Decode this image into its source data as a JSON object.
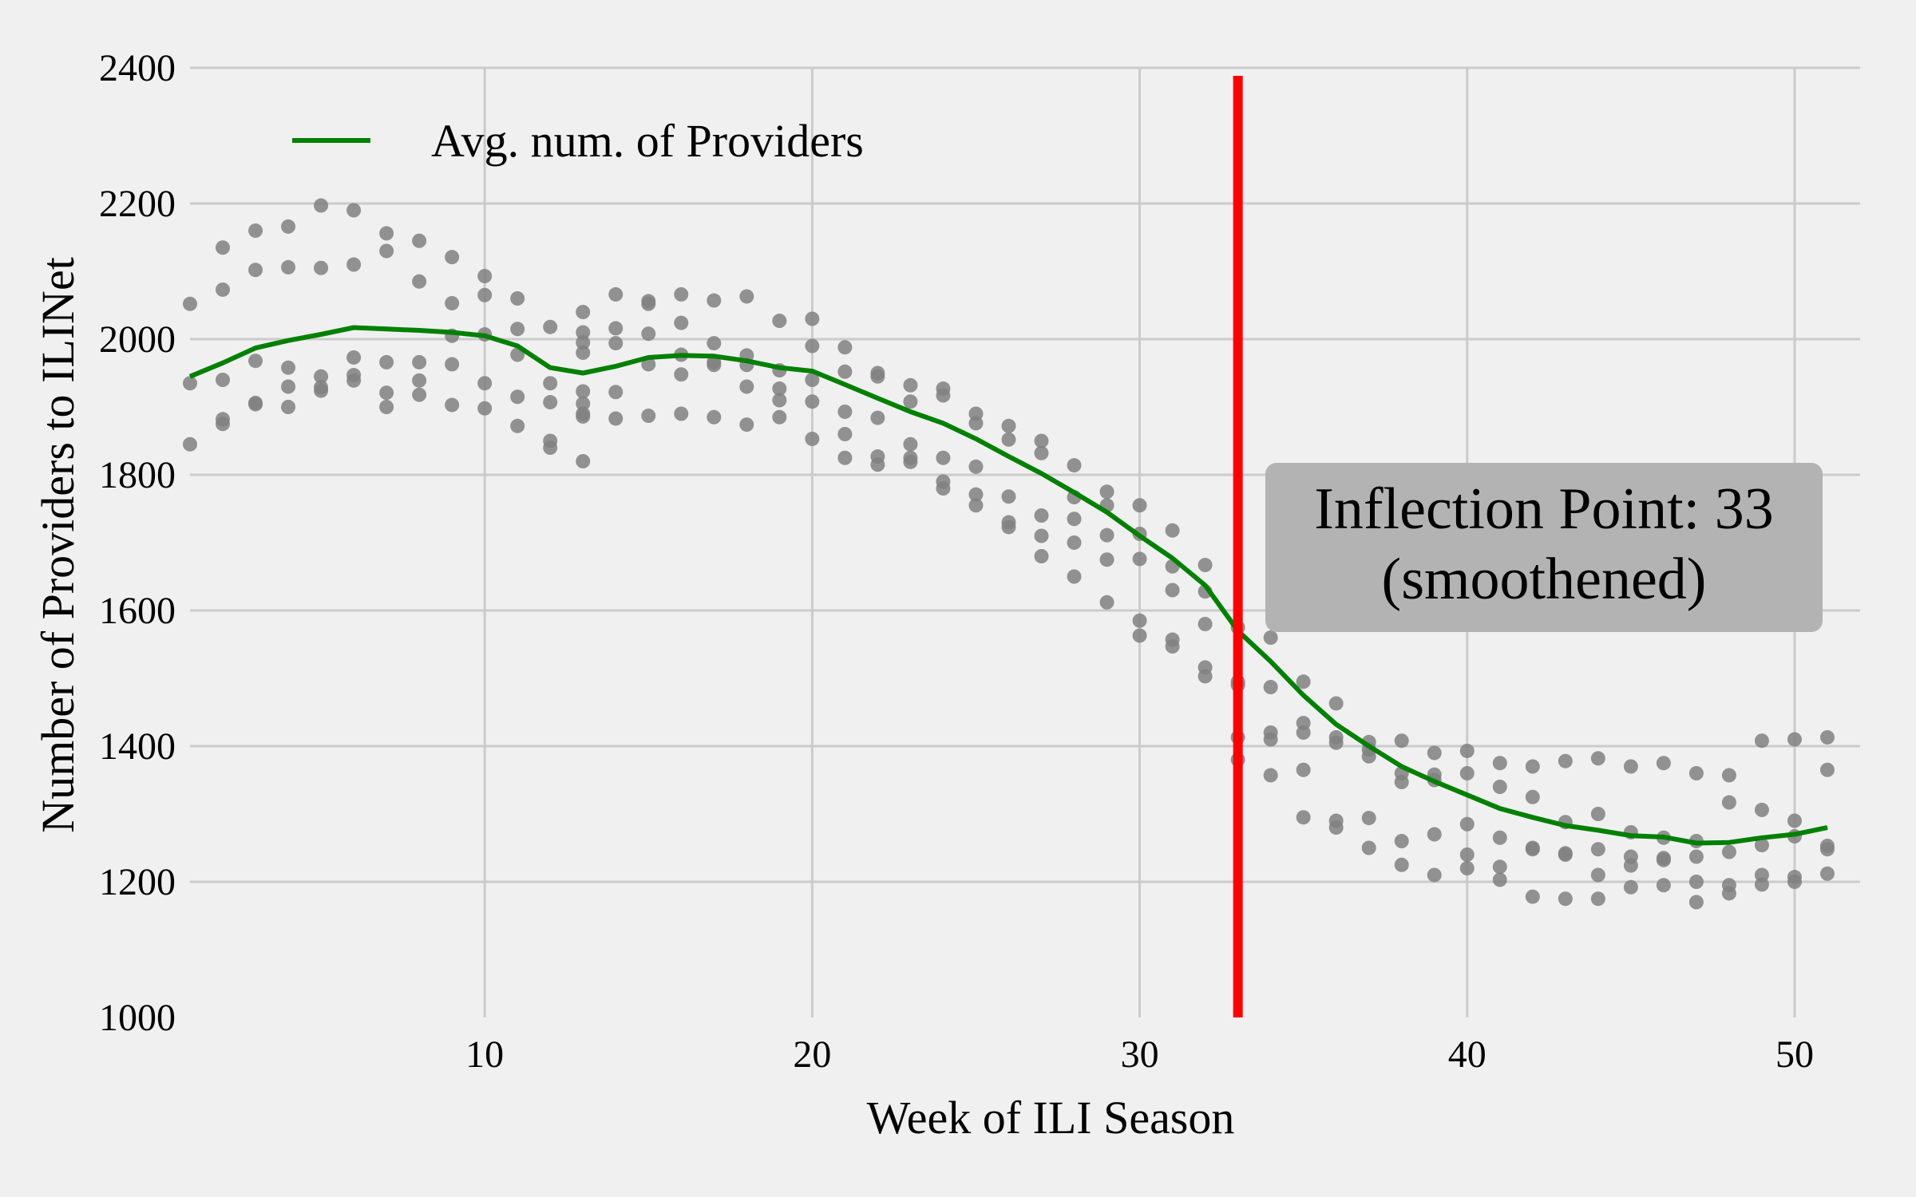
{
  "chart_data": {
    "type": "scatter",
    "xlabel": "Week of ILI Season",
    "ylabel": "Number of Providers to ILINet",
    "xlim": [
      1,
      52
    ],
    "ylim": [
      1000,
      2400
    ],
    "xticks": [
      10,
      20,
      30,
      40,
      50
    ],
    "yticks": [
      1000,
      1200,
      1400,
      1600,
      1800,
      2000,
      2200,
      2400
    ],
    "grid": true,
    "legend": {
      "placement": "top-left",
      "entries": [
        "Avg. num. of Providers"
      ]
    },
    "colors": {
      "background": "#f0f0f0",
      "grid": "#cbcbcb",
      "points": "#808080",
      "line": "#008000",
      "inflection": "#ff0000",
      "annotation_box": "#b3b3b3"
    },
    "annotation": {
      "lines": [
        "Inflection Point: 33",
        "(smoothened)"
      ]
    },
    "inflection_x": 33,
    "series": [
      {
        "name": "Avg. num. of Providers",
        "type": "line",
        "x": [
          1,
          2,
          3,
          4,
          5,
          6,
          7,
          8,
          9,
          10,
          11,
          12,
          13,
          14,
          15,
          16,
          17,
          18,
          19,
          20,
          21,
          22,
          23,
          24,
          25,
          26,
          27,
          28,
          29,
          30,
          31,
          32,
          33,
          34,
          35,
          36,
          37,
          38,
          39,
          40,
          41,
          42,
          43,
          44,
          45,
          46,
          47,
          48,
          49,
          50,
          51
        ],
        "y": [
          1945,
          1965,
          1987,
          1998,
          2007,
          2017,
          2015,
          2013,
          2010,
          2005,
          1990,
          1958,
          1950,
          1960,
          1973,
          1976,
          1975,
          1968,
          1958,
          1953,
          1933,
          1913,
          1893,
          1876,
          1853,
          1827,
          1802,
          1774,
          1745,
          1710,
          1677,
          1637,
          1570,
          1525,
          1475,
          1432,
          1400,
          1370,
          1348,
          1328,
          1308,
          1295,
          1283,
          1276,
          1268,
          1266,
          1257,
          1258,
          1265,
          1270,
          1280
        ]
      },
      {
        "type": "scatter",
        "points": [
          [
            1,
            2052
          ],
          [
            1,
            1935
          ],
          [
            1,
            1845
          ],
          [
            2,
            2135
          ],
          [
            2,
            2073
          ],
          [
            2,
            1940
          ],
          [
            2,
            1882
          ],
          [
            2,
            1875
          ],
          [
            3,
            2160
          ],
          [
            3,
            2102
          ],
          [
            3,
            1968
          ],
          [
            3,
            1906
          ],
          [
            3,
            1904
          ],
          [
            4,
            2166
          ],
          [
            4,
            2106
          ],
          [
            4,
            1958
          ],
          [
            4,
            1930
          ],
          [
            4,
            1900
          ],
          [
            5,
            2197
          ],
          [
            5,
            2105
          ],
          [
            5,
            1945
          ],
          [
            5,
            1929
          ],
          [
            5,
            1924
          ],
          [
            6,
            2190
          ],
          [
            6,
            2110
          ],
          [
            6,
            1973
          ],
          [
            6,
            1947
          ],
          [
            6,
            1939
          ],
          [
            7,
            2156
          ],
          [
            7,
            2130
          ],
          [
            7,
            1966
          ],
          [
            7,
            1921
          ],
          [
            7,
            1900
          ],
          [
            8,
            2145
          ],
          [
            8,
            2085
          ],
          [
            8,
            1966
          ],
          [
            8,
            1939
          ],
          [
            8,
            1918
          ],
          [
            9,
            2121
          ],
          [
            9,
            2053
          ],
          [
            9,
            2005
          ],
          [
            9,
            1963
          ],
          [
            9,
            1903
          ],
          [
            10,
            2093
          ],
          [
            10,
            2065
          ],
          [
            10,
            2007
          ],
          [
            10,
            1935
          ],
          [
            10,
            1898
          ],
          [
            11,
            2060
          ],
          [
            11,
            2015
          ],
          [
            11,
            1977
          ],
          [
            11,
            1915
          ],
          [
            11,
            1872
          ],
          [
            12,
            2018
          ],
          [
            12,
            1935
          ],
          [
            12,
            1907
          ],
          [
            12,
            1850
          ],
          [
            12,
            1840
          ],
          [
            13,
            2040
          ],
          [
            13,
            2010
          ],
          [
            13,
            1995
          ],
          [
            13,
            1980
          ],
          [
            13,
            1923
          ],
          [
            13,
            1905
          ],
          [
            13,
            1890
          ],
          [
            13,
            1886
          ],
          [
            13,
            1820
          ],
          [
            14,
            2066
          ],
          [
            14,
            2016
          ],
          [
            14,
            1994
          ],
          [
            14,
            1922
          ],
          [
            14,
            1883
          ],
          [
            15,
            2056
          ],
          [
            15,
            2052
          ],
          [
            15,
            2008
          ],
          [
            15,
            1963
          ],
          [
            15,
            1887
          ],
          [
            16,
            2066
          ],
          [
            16,
            2024
          ],
          [
            16,
            1977
          ],
          [
            16,
            1948
          ],
          [
            16,
            1890
          ],
          [
            17,
            2057
          ],
          [
            17,
            1994
          ],
          [
            17,
            1966
          ],
          [
            17,
            1962
          ],
          [
            17,
            1885
          ],
          [
            18,
            2063
          ],
          [
            18,
            1976
          ],
          [
            18,
            1962
          ],
          [
            18,
            1930
          ],
          [
            18,
            1874
          ],
          [
            19,
            2027
          ],
          [
            19,
            1954
          ],
          [
            19,
            1927
          ],
          [
            19,
            1910
          ],
          [
            19,
            1885
          ],
          [
            20,
            2030
          ],
          [
            20,
            1990
          ],
          [
            20,
            1940
          ],
          [
            20,
            1908
          ],
          [
            20,
            1853
          ],
          [
            21,
            1988
          ],
          [
            21,
            1952
          ],
          [
            21,
            1893
          ],
          [
            21,
            1860
          ],
          [
            21,
            1825
          ],
          [
            22,
            1950
          ],
          [
            22,
            1945
          ],
          [
            22,
            1884
          ],
          [
            22,
            1827
          ],
          [
            22,
            1815
          ],
          [
            23,
            1932
          ],
          [
            23,
            1908
          ],
          [
            23,
            1845
          ],
          [
            23,
            1825
          ],
          [
            23,
            1819
          ],
          [
            24,
            1927
          ],
          [
            24,
            1917
          ],
          [
            24,
            1825
          ],
          [
            24,
            1790
          ],
          [
            24,
            1780
          ],
          [
            25,
            1890
          ],
          [
            25,
            1876
          ],
          [
            25,
            1812
          ],
          [
            25,
            1771
          ],
          [
            25,
            1755
          ],
          [
            26,
            1872
          ],
          [
            26,
            1852
          ],
          [
            26,
            1768
          ],
          [
            26,
            1730
          ],
          [
            26,
            1723
          ],
          [
            27,
            1850
          ],
          [
            27,
            1832
          ],
          [
            27,
            1740
          ],
          [
            27,
            1710
          ],
          [
            27,
            1680
          ],
          [
            28,
            1814
          ],
          [
            28,
            1767
          ],
          [
            28,
            1735
          ],
          [
            28,
            1700
          ],
          [
            28,
            1650
          ],
          [
            29,
            1775
          ],
          [
            29,
            1755
          ],
          [
            29,
            1711
          ],
          [
            29,
            1675
          ],
          [
            29,
            1612
          ],
          [
            30,
            1755
          ],
          [
            30,
            1713
          ],
          [
            30,
            1676
          ],
          [
            30,
            1585
          ],
          [
            30,
            1563
          ],
          [
            31,
            1718
          ],
          [
            31,
            1665
          ],
          [
            31,
            1630
          ],
          [
            31,
            1557
          ],
          [
            31,
            1547
          ],
          [
            32,
            1667
          ],
          [
            32,
            1628
          ],
          [
            32,
            1580
          ],
          [
            32,
            1516
          ],
          [
            32,
            1503
          ],
          [
            33,
            1575
          ],
          [
            33,
            1495
          ],
          [
            33,
            1490
          ],
          [
            33,
            1413
          ],
          [
            33,
            1380
          ],
          [
            34,
            1560
          ],
          [
            34,
            1487
          ],
          [
            34,
            1420
          ],
          [
            34,
            1410
          ],
          [
            34,
            1357
          ],
          [
            35,
            1495
          ],
          [
            35,
            1434
          ],
          [
            35,
            1420
          ],
          [
            35,
            1365
          ],
          [
            35,
            1295
          ],
          [
            36,
            1463
          ],
          [
            36,
            1413
          ],
          [
            36,
            1405
          ],
          [
            36,
            1290
          ],
          [
            36,
            1280
          ],
          [
            37,
            1406
          ],
          [
            37,
            1395
          ],
          [
            37,
            1385
          ],
          [
            37,
            1294
          ],
          [
            37,
            1250
          ],
          [
            38,
            1408
          ],
          [
            38,
            1360
          ],
          [
            38,
            1347
          ],
          [
            38,
            1260
          ],
          [
            38,
            1225
          ],
          [
            39,
            1390
          ],
          [
            39,
            1358
          ],
          [
            39,
            1350
          ],
          [
            39,
            1270
          ],
          [
            39,
            1210
          ],
          [
            40,
            1393
          ],
          [
            40,
            1360
          ],
          [
            40,
            1285
          ],
          [
            40,
            1240
          ],
          [
            40,
            1220
          ],
          [
            41,
            1375
          ],
          [
            41,
            1340
          ],
          [
            41,
            1265
          ],
          [
            41,
            1222
          ],
          [
            41,
            1203
          ],
          [
            42,
            1370
          ],
          [
            42,
            1325
          ],
          [
            42,
            1250
          ],
          [
            42,
            1248
          ],
          [
            42,
            1178
          ],
          [
            43,
            1378
          ],
          [
            43,
            1288
          ],
          [
            43,
            1242
          ],
          [
            43,
            1240
          ],
          [
            43,
            1175
          ],
          [
            44,
            1382
          ],
          [
            44,
            1300
          ],
          [
            44,
            1248
          ],
          [
            44,
            1210
          ],
          [
            44,
            1175
          ],
          [
            45,
            1370
          ],
          [
            45,
            1273
          ],
          [
            45,
            1237
          ],
          [
            45,
            1224
          ],
          [
            45,
            1192
          ],
          [
            46,
            1375
          ],
          [
            46,
            1265
          ],
          [
            46,
            1235
          ],
          [
            46,
            1232
          ],
          [
            46,
            1195
          ],
          [
            47,
            1360
          ],
          [
            47,
            1260
          ],
          [
            47,
            1237
          ],
          [
            47,
            1200
          ],
          [
            47,
            1170
          ],
          [
            48,
            1357
          ],
          [
            48,
            1317
          ],
          [
            48,
            1244
          ],
          [
            48,
            1195
          ],
          [
            48,
            1183
          ],
          [
            49,
            1408
          ],
          [
            49,
            1306
          ],
          [
            49,
            1254
          ],
          [
            49,
            1210
          ],
          [
            49,
            1196
          ],
          [
            50,
            1410
          ],
          [
            50,
            1290
          ],
          [
            50,
            1267
          ],
          [
            50,
            1207
          ],
          [
            50,
            1200
          ],
          [
            51,
            1413
          ],
          [
            51,
            1365
          ],
          [
            51,
            1253
          ],
          [
            51,
            1248
          ],
          [
            51,
            1212
          ]
        ]
      }
    ]
  }
}
